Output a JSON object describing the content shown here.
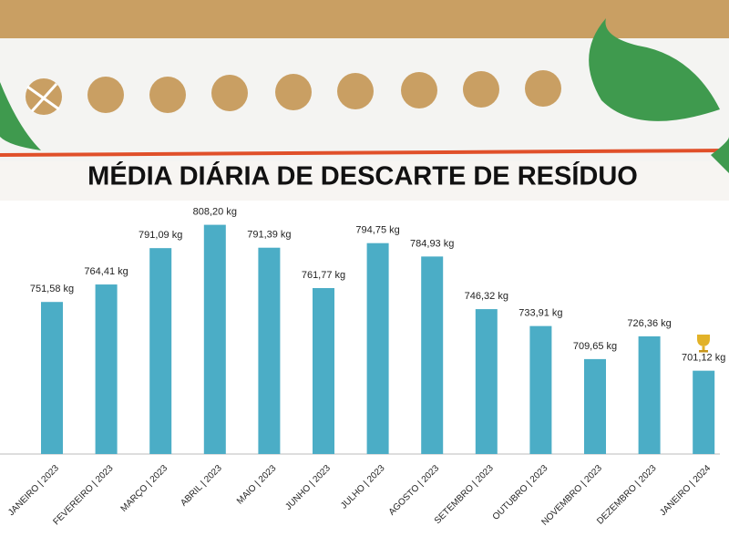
{
  "chart_data": {
    "type": "bar",
    "title": "MÉDIA DIÁRIA DE DESCARTE DE RESÍDUO",
    "categories": [
      "JANEIRO | 2023",
      "FEVEREIRO | 2023",
      "MARÇO | 2023",
      "ABRIL | 2023",
      "MAIO | 2023",
      "JUNHO | 2023",
      "JULHO | 2023",
      "AGOSTO | 2023",
      "SETEMBRO | 2023",
      "OUTUBRO | 2023",
      "NOVEMBRO | 2023",
      "DEZEMBRO | 2023",
      "JANEIRO | 2024"
    ],
    "values": [
      751.58,
      764.41,
      791.09,
      808.2,
      791.39,
      761.77,
      794.75,
      784.93,
      746.32,
      733.91,
      709.65,
      726.36,
      701.12
    ],
    "value_labels": [
      "751,58 kg",
      "764,41 kg",
      "791,09 kg",
      "808,20 kg",
      "791,39 kg",
      "761,77 kg",
      "794,75 kg",
      "784,93 kg",
      "746,32 kg",
      "733,91 kg",
      "709,65 kg",
      "726,36 kg",
      "701,12 kg"
    ],
    "color": "#4badc6",
    "ylim": [
      640,
      830
    ]
  }
}
